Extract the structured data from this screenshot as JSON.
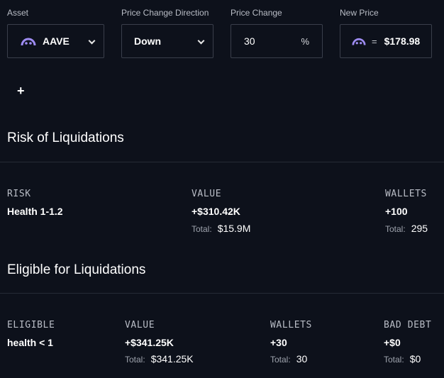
{
  "controls": {
    "asset": {
      "label": "Asset",
      "value": "AAVE",
      "icon": "aave-ghost-icon"
    },
    "direction": {
      "label": "Price Change Direction",
      "value": "Down"
    },
    "change": {
      "label": "Price Change",
      "value": "30",
      "unit": "%"
    },
    "new_price": {
      "label": "New Price",
      "equals": "=",
      "value": "$178.98"
    },
    "add_label": "+"
  },
  "risk": {
    "title": "Risk of Liquidations",
    "headers": {
      "risk": "RISK",
      "value": "VALUE",
      "wallets": "WALLETS"
    },
    "row": {
      "risk": "Health 1-1.2",
      "value": "+$310.42K",
      "value_total": "$15.9M",
      "wallets": "+100",
      "wallets_total": "295"
    },
    "total_label": "Total:"
  },
  "eligible": {
    "title": "Eligible for Liquidations",
    "headers": {
      "eligible": "ELIGIBLE",
      "value": "VALUE",
      "wallets": "WALLETS",
      "bad_debt": "BAD DEBT"
    },
    "row": {
      "eligible": "health < 1",
      "value": "+$341.25K",
      "value_total": "$341.25K",
      "wallets": "+30",
      "wallets_total": "30",
      "bad_debt": "+$0",
      "bad_debt_total": "$0"
    },
    "total_label": "Total:"
  },
  "colors": {
    "background": "#0d111b",
    "border": "#3a3f4b",
    "accent": "#9e8cf2"
  }
}
